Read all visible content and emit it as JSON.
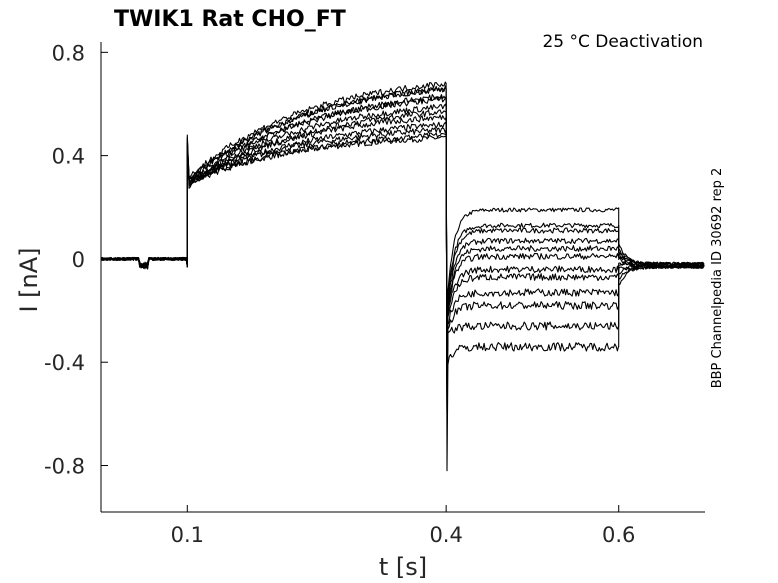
{
  "chart_data": {
    "type": "line",
    "title": "TWIK1  Rat  CHO_FT",
    "annotation": "25 °C  Deactivation",
    "side_label": "BBP Channelpedia ID 30692 rep 2",
    "xlabel": "t [s]",
    "ylabel": "I [nA]",
    "xlim": [
      0.0,
      0.7
    ],
    "ylim": [
      -0.98,
      0.84
    ],
    "x_ticks": [
      0.1,
      0.4,
      0.6
    ],
    "x_tick_labels": [
      "0.1",
      "0.4",
      "0.6"
    ],
    "y_ticks": [
      -0.8,
      -0.4,
      0,
      0.4,
      0.8
    ],
    "y_tick_labels": [
      "-0.8",
      "-0.4",
      "0",
      "0.4",
      "0.8"
    ],
    "grid": false,
    "protocol": {
      "baseline_current": 0.0,
      "step1_start": 0.1,
      "step2_start": 0.4,
      "step3_start": 0.6,
      "end": 0.7,
      "initial_spike": 0.48,
      "deactivation_spike": -0.82
    },
    "series": [
      {
        "step1_start": 0.3,
        "step1_end": 0.47,
        "step2_level": 0.19,
        "tail": -0.02
      },
      {
        "step1_start": 0.29,
        "step1_end": 0.48,
        "step2_level": 0.13,
        "tail": -0.02
      },
      {
        "step1_start": 0.3,
        "step1_end": 0.5,
        "step2_level": 0.11,
        "tail": -0.02
      },
      {
        "step1_start": 0.29,
        "step1_end": 0.52,
        "step2_level": 0.07,
        "tail": -0.03
      },
      {
        "step1_start": 0.3,
        "step1_end": 0.55,
        "step2_level": 0.04,
        "tail": -0.02
      },
      {
        "step1_start": 0.28,
        "step1_end": 0.57,
        "step2_level": 0.01,
        "tail": -0.03
      },
      {
        "step1_start": 0.29,
        "step1_end": 0.59,
        "step2_level": -0.04,
        "tail": -0.03
      },
      {
        "step1_start": 0.3,
        "step1_end": 0.62,
        "step2_level": -0.07,
        "tail": -0.02
      },
      {
        "step1_start": 0.28,
        "step1_end": 0.63,
        "step2_level": -0.13,
        "tail": -0.03
      },
      {
        "step1_start": 0.3,
        "step1_end": 0.66,
        "step2_level": -0.18,
        "tail": -0.03
      },
      {
        "step1_start": 0.31,
        "step1_end": 0.68,
        "step2_level": -0.26,
        "tail": -0.03
      },
      {
        "step1_start": 0.3,
        "step1_end": 0.66,
        "step2_level": -0.34,
        "tail": -0.03
      }
    ]
  }
}
